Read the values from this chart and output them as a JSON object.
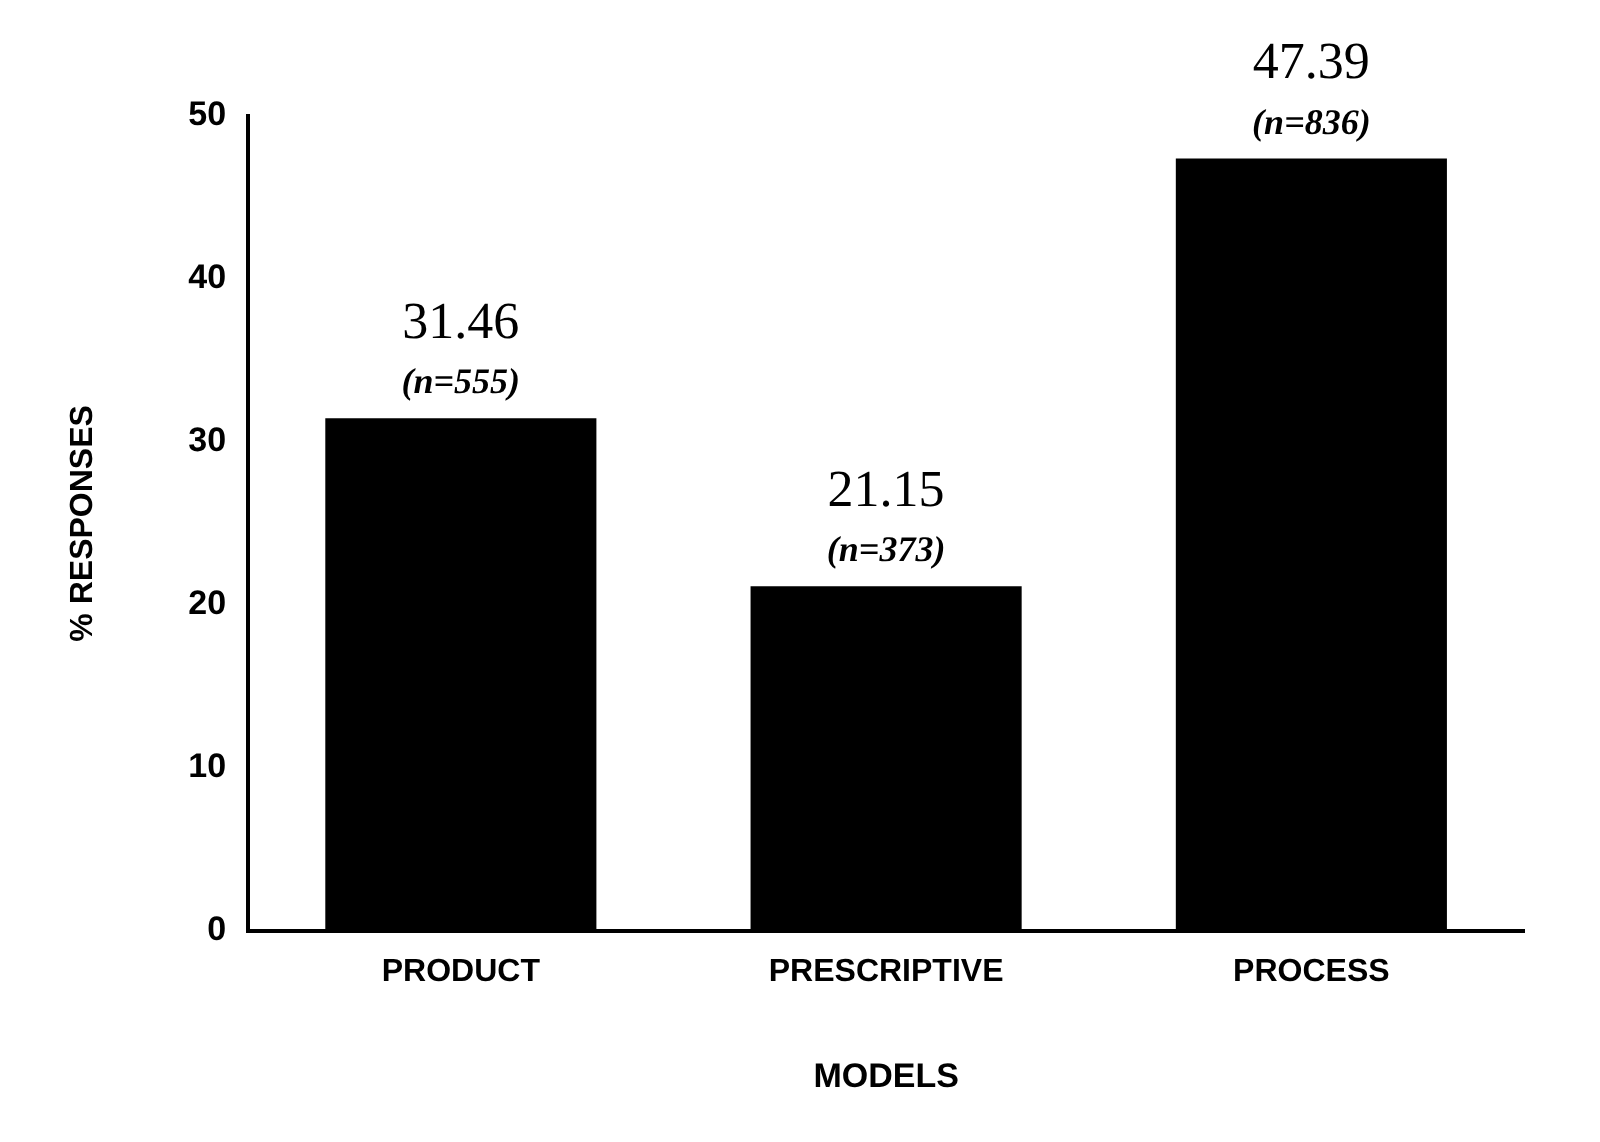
{
  "chart_data": {
    "type": "bar",
    "xlabel": "MODELS",
    "ylabel": "% RESPONSES",
    "categories": [
      "PRODUCT",
      "PRESCRIPTIVE",
      "PROCESS"
    ],
    "values": [
      31.46,
      21.15,
      47.39
    ],
    "color": "#000000",
    "ylim": [
      0,
      50
    ],
    "yticks": [
      0,
      10,
      20,
      30,
      40,
      50
    ],
    "grid": false,
    "legend": false,
    "data_labels": true,
    "annotations": [
      {
        "text": "(n=555)",
        "x": "PRODUCT",
        "y": 31.46
      },
      {
        "text": "(n=373)",
        "x": "PRESCRIPTIVE",
        "y": 21.15
      },
      {
        "text": "(n=836)",
        "x": "PROCESS",
        "y": 47.39
      }
    ]
  }
}
